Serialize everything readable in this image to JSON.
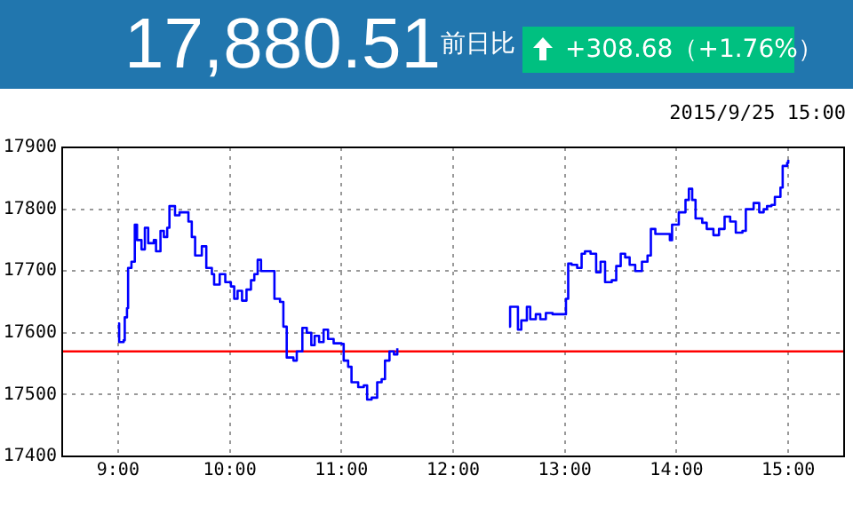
{
  "chart_data": {
    "type": "step",
    "title": "17,880.51",
    "subtitle": "前日比",
    "annotations": [
      "+308.68（+1.76%）",
      "2015/9/25 15:00"
    ],
    "x": [
      9.0,
      9.01,
      9.05,
      9.06,
      9.08,
      9.09,
      9.12,
      9.15,
      9.17,
      9.21,
      9.24,
      9.27,
      9.32,
      9.34,
      9.38,
      9.41,
      9.44,
      9.46,
      9.51,
      9.55,
      9.63,
      9.66,
      9.69,
      9.75,
      9.79,
      9.84,
      9.86,
      9.91,
      9.96,
      10.01,
      10.04,
      10.07,
      10.11,
      10.15,
      10.19,
      10.22,
      10.25,
      10.28,
      10.37,
      10.4,
      10.45,
      10.48,
      10.51,
      10.57,
      10.6,
      10.65,
      10.69,
      10.73,
      10.76,
      10.8,
      10.84,
      10.88,
      10.93,
      11.0,
      11.02,
      11.06,
      11.09,
      11.15,
      11.2,
      11.23,
      11.27,
      11.32,
      11.36,
      11.39,
      11.43,
      11.47,
      11.5,
      12.0,
      12.5,
      12.51,
      12.56,
      12.58,
      12.61,
      12.66,
      12.69,
      12.74,
      12.78,
      12.83,
      12.89,
      12.99,
      13.01,
      13.03,
      13.06,
      13.11,
      13.15,
      13.18,
      13.23,
      13.28,
      13.32,
      13.36,
      13.42,
      13.46,
      13.5,
      13.54,
      13.58,
      13.63,
      13.69,
      13.74,
      13.77,
      13.81,
      13.91,
      13.94,
      13.96,
      14.02,
      14.08,
      14.11,
      14.14,
      14.17,
      14.23,
      14.27,
      14.33,
      14.38,
      14.43,
      14.48,
      14.53,
      14.59,
      14.62,
      14.65,
      14.69,
      14.74,
      14.78,
      14.81,
      14.85,
      14.88,
      14.93,
      14.95,
      14.99,
      15.0
    ],
    "series": [
      {
        "color": "#0000ff",
        "values": [
          17615,
          17585,
          17588,
          17625,
          17640,
          17705,
          17715,
          17775,
          17750,
          17735,
          17770,
          17745,
          17750,
          17732,
          17765,
          17755,
          17770,
          17805,
          17790,
          17795,
          17780,
          17755,
          17725,
          17740,
          17705,
          17695,
          17678,
          17695,
          17682,
          17675,
          17655,
          17668,
          17652,
          17670,
          17685,
          17695,
          17718,
          17700,
          17700,
          17655,
          17650,
          17610,
          17560,
          17555,
          17570,
          17608,
          17600,
          17580,
          17595,
          17585,
          17605,
          17590,
          17583,
          17582,
          17555,
          17545,
          17520,
          17512,
          17515,
          17492,
          17495,
          17520,
          17525,
          17555,
          17570,
          17565,
          17575,
          null,
          17610,
          17642,
          17642,
          17605,
          17620,
          17642,
          17622,
          17630,
          17622,
          17632,
          17630,
          17630,
          17655,
          17712,
          17710,
          17705,
          17728,
          17732,
          17728,
          17698,
          17715,
          17682,
          17685,
          17708,
          17728,
          17722,
          17710,
          17700,
          17715,
          17725,
          17768,
          17760,
          17760,
          17750,
          17775,
          17795,
          17815,
          17833,
          17815,
          17785,
          17778,
          17768,
          17758,
          17768,
          17788,
          17780,
          17762,
          17765,
          17800,
          17800,
          17810,
          17795,
          17800,
          17805,
          17807,
          17820,
          17835,
          17870,
          17875,
          17880
        ]
      }
    ],
    "xlim": [
      8.5,
      15.5
    ],
    "xticks": [
      {
        "value": 9,
        "label": "9:00"
      },
      {
        "value": 10,
        "label": "10:00"
      },
      {
        "value": 11,
        "label": "11:00"
      },
      {
        "value": 12,
        "label": "12:00"
      },
      {
        "value": 13,
        "label": "13:00"
      },
      {
        "value": 14,
        "label": "14:00"
      },
      {
        "value": 15,
        "label": "15:00"
      }
    ],
    "ylim": [
      17400,
      17900
    ],
    "yticks": [
      17400,
      17500,
      17600,
      17700,
      17800,
      17900
    ],
    "ref_lines": [
      {
        "axis": "y",
        "value": 17570,
        "color": "#ff0000"
      }
    ],
    "grid": true,
    "legend": false,
    "marker": "none",
    "line_style": "solid"
  }
}
